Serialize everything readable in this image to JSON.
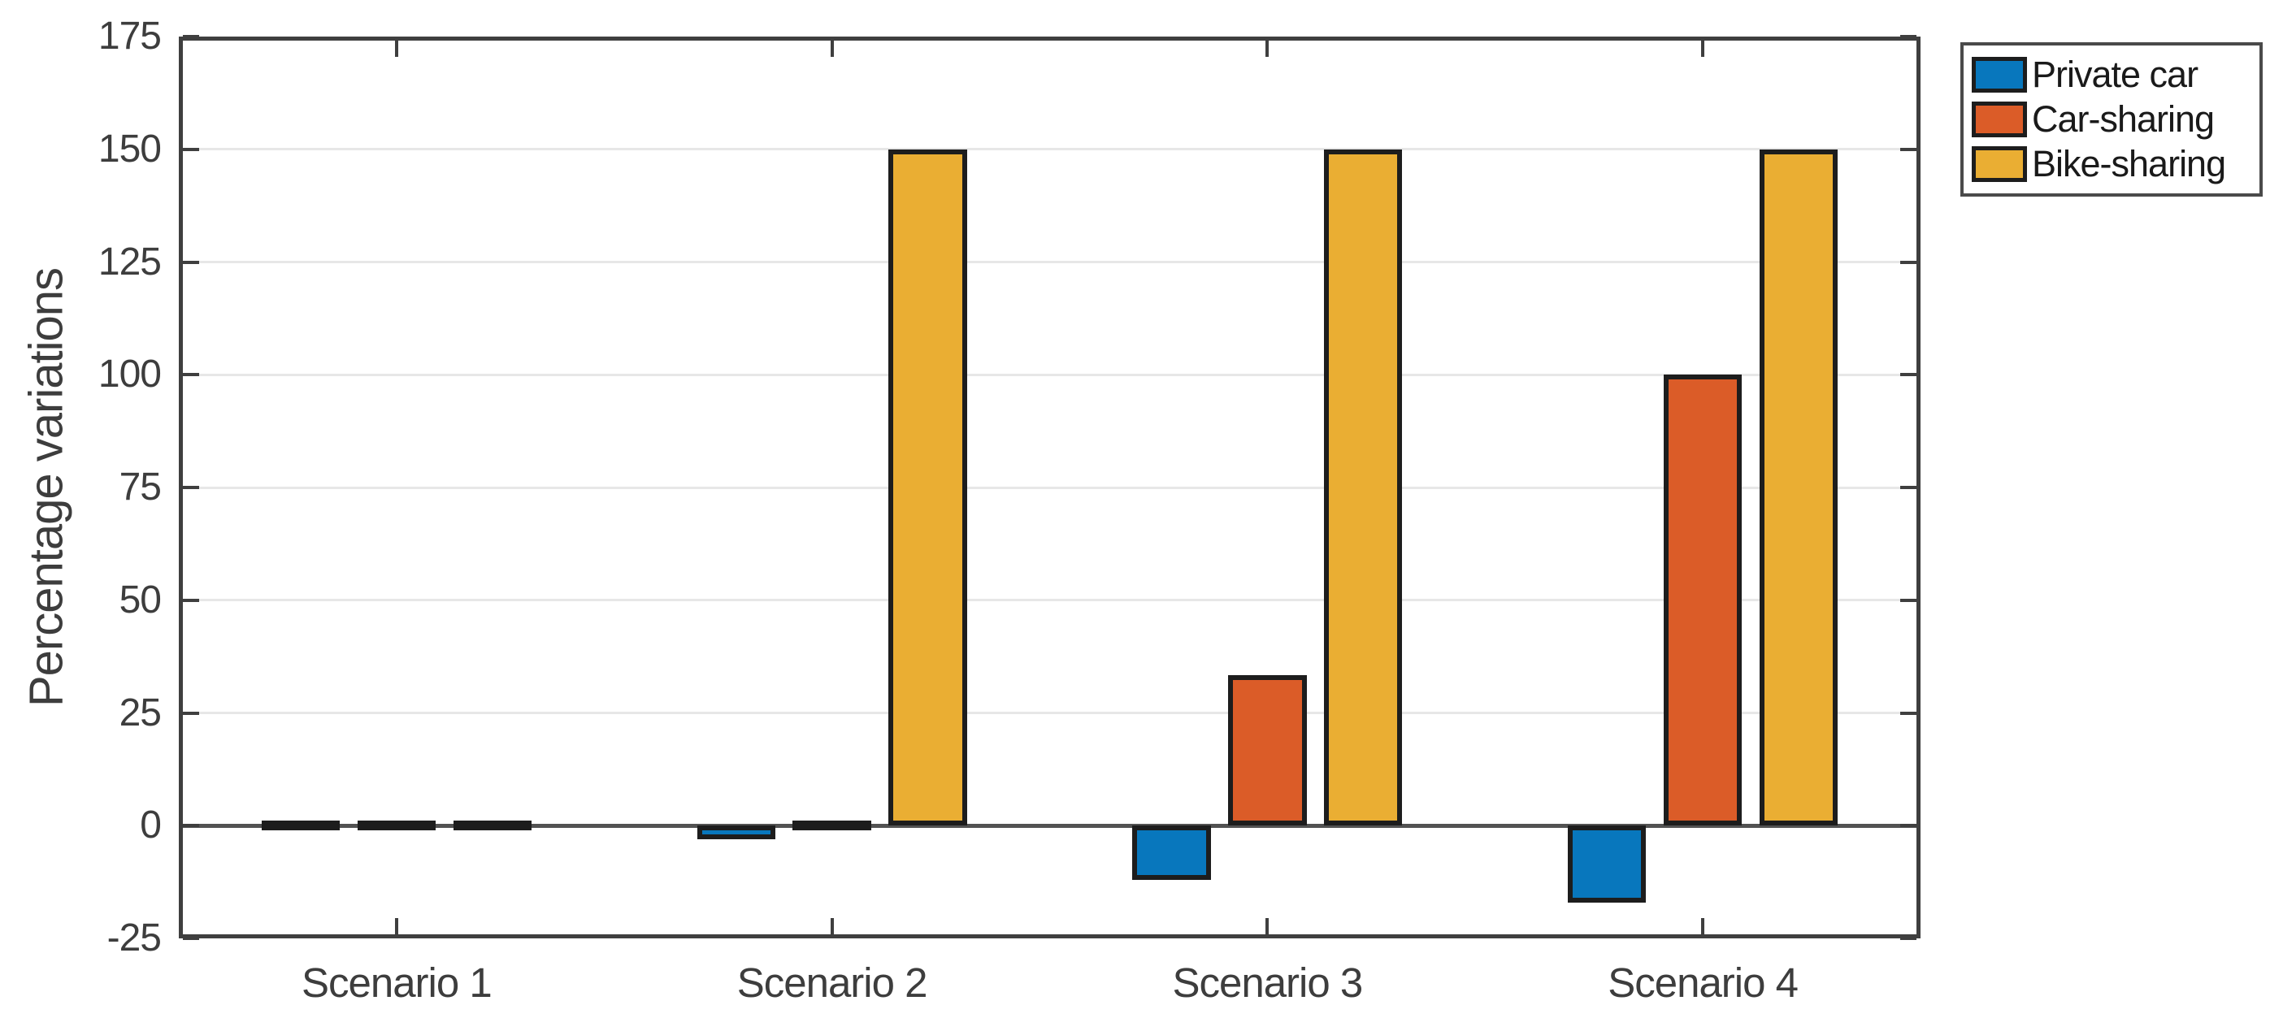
{
  "chart_data": {
    "type": "bar",
    "title": "",
    "xlabel": "",
    "ylabel": "Percentage variations",
    "categories": [
      "Scenario 1",
      "Scenario 2",
      "Scenario 3",
      "Scenario 4"
    ],
    "series": [
      {
        "name": "Private car",
        "color": "#0877bd",
        "values": [
          0,
          -3,
          -12,
          -17
        ]
      },
      {
        "name": "Car-sharing",
        "color": "#db5c28",
        "values": [
          0,
          0,
          33.3,
          100
        ]
      },
      {
        "name": "Bike-sharing",
        "color": "#eaae33",
        "values": [
          0,
          150,
          150,
          150
        ]
      }
    ],
    "ylim": [
      -25,
      175
    ],
    "yticks": [
      -25,
      0,
      25,
      50,
      75,
      100,
      125,
      150,
      175
    ],
    "grid": "horizontal",
    "legend_position": "outside-top-right",
    "bar_edge_color": "#1d1d1d",
    "axis_color": "#3f3f3f",
    "grid_color": "#e7e7e7",
    "zero_baseline_color": "#525252",
    "text_color": "#3d3d3d"
  }
}
